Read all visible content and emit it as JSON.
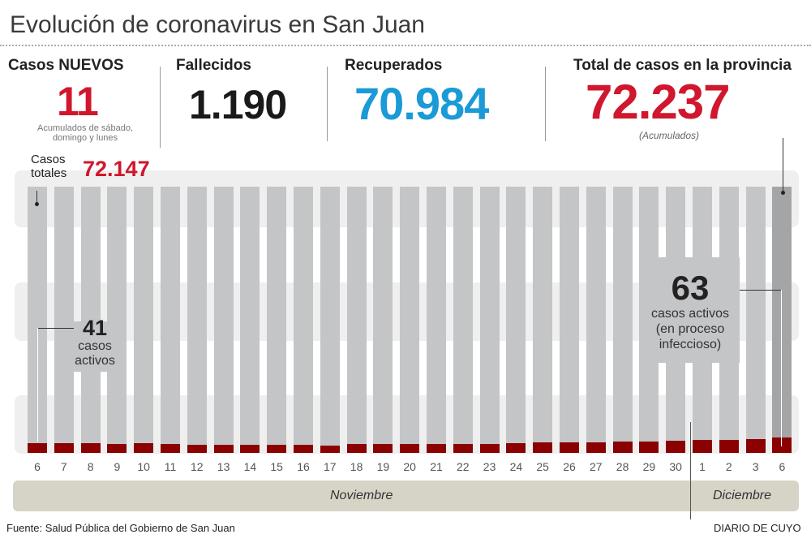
{
  "title": "Evolución de coronavirus en San Juan",
  "stats": {
    "new_label": "Casos NUEVOS",
    "new_value": "11",
    "new_note1": "Acumulados de sábado,",
    "new_note2": "domingo y lunes",
    "deaths_label": "Fallecidos",
    "deaths_value": "1.190",
    "recovered_label": "Recuperados",
    "recovered_value": "70.984",
    "total_label": "Total de casos en la provincia",
    "total_value": "72.237",
    "total_note": "(Acumulados)"
  },
  "colors": {
    "new": "#d0172d",
    "recovered": "#1a9ad6",
    "total": "#d0172d",
    "active": "#8b0000",
    "bar": "#c4c5c7",
    "last_bar": "#a4a5a7"
  },
  "chart_data": {
    "type": "bar",
    "categories": [
      "6",
      "7",
      "8",
      "9",
      "10",
      "11",
      "12",
      "13",
      "14",
      "15",
      "16",
      "17",
      "18",
      "19",
      "20",
      "21",
      "22",
      "23",
      "24",
      "25",
      "26",
      "27",
      "28",
      "29",
      "30",
      "1",
      "2",
      "3",
      "6"
    ],
    "months": [
      "Noviembre",
      "Diciembre"
    ],
    "series": [
      {
        "name": "casos activos",
        "values": [
          41,
          41,
          40,
          38,
          40,
          37,
          35,
          35,
          34,
          34,
          33,
          31,
          36,
          36,
          37,
          37,
          36,
          37,
          40,
          42,
          44,
          45,
          46,
          47,
          49,
          52,
          54,
          56,
          63
        ]
      }
    ],
    "annotations": {
      "total_start_l1": "Casos",
      "total_start_l2": "totales",
      "total_start_value": "72.147",
      "active_start_value": "41",
      "active_start_l1": "casos",
      "active_start_l2": "activos",
      "active_end_value": "63",
      "active_end_l1": "casos activos",
      "active_end_l2": "(en proceso",
      "active_end_l3": "infeccioso)"
    }
  },
  "footer": {
    "source": "Fuente: Salud Pública del Gobierno de San Juan",
    "brand": "DIARIO DE CUYO"
  }
}
